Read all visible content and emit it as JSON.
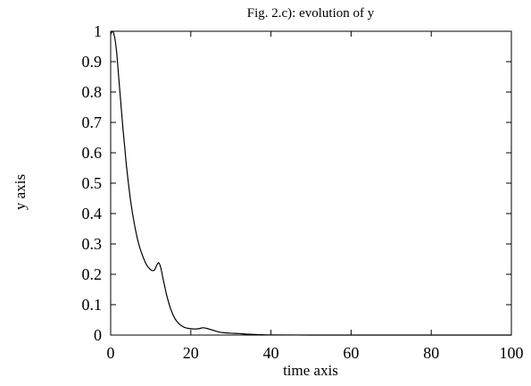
{
  "chart_data": {
    "type": "line",
    "title": "Fig. 2.c): evolution of y",
    "xlabel": "time axis",
    "ylabel": "y axis",
    "xlim": [
      0,
      100
    ],
    "ylim": [
      0,
      1
    ],
    "x_ticks": [
      0,
      20,
      40,
      60,
      80,
      100
    ],
    "y_ticks": [
      0,
      0.1,
      0.2,
      0.3,
      0.4,
      0.5,
      0.6,
      0.7,
      0.8,
      0.9,
      1
    ],
    "y_tick_labels": [
      "0",
      "0.1",
      "0.2",
      "0.3",
      "0.4",
      "0.5",
      "0.6",
      "0.7",
      "0.8",
      "0.9",
      "1"
    ],
    "grid": false,
    "legend": "none",
    "series": [
      {
        "x": [
          0,
          0.5,
          1,
          1.5,
          2,
          2.5,
          3,
          3.5,
          4,
          5,
          6,
          7,
          8,
          9,
          10,
          10.5,
          11,
          11.5,
          12,
          12.5,
          13,
          13.5,
          14,
          15,
          16,
          17,
          18,
          19,
          20,
          21,
          22,
          23,
          24,
          25,
          26,
          27,
          28,
          30,
          32,
          34,
          36,
          38,
          40,
          50,
          60,
          70,
          80,
          90,
          100
        ],
        "y": [
          0.99,
          1.0,
          0.98,
          0.93,
          0.85,
          0.77,
          0.69,
          0.62,
          0.55,
          0.44,
          0.36,
          0.3,
          0.26,
          0.23,
          0.215,
          0.212,
          0.215,
          0.23,
          0.238,
          0.222,
          0.19,
          0.16,
          0.13,
          0.085,
          0.055,
          0.038,
          0.028,
          0.023,
          0.021,
          0.02,
          0.021,
          0.024,
          0.022,
          0.018,
          0.014,
          0.01,
          0.008,
          0.006,
          0.005,
          0.003,
          0.002,
          0.001,
          0.0005,
          0.0,
          0.0,
          0.0,
          0.0,
          0.0,
          0.0
        ]
      }
    ]
  }
}
